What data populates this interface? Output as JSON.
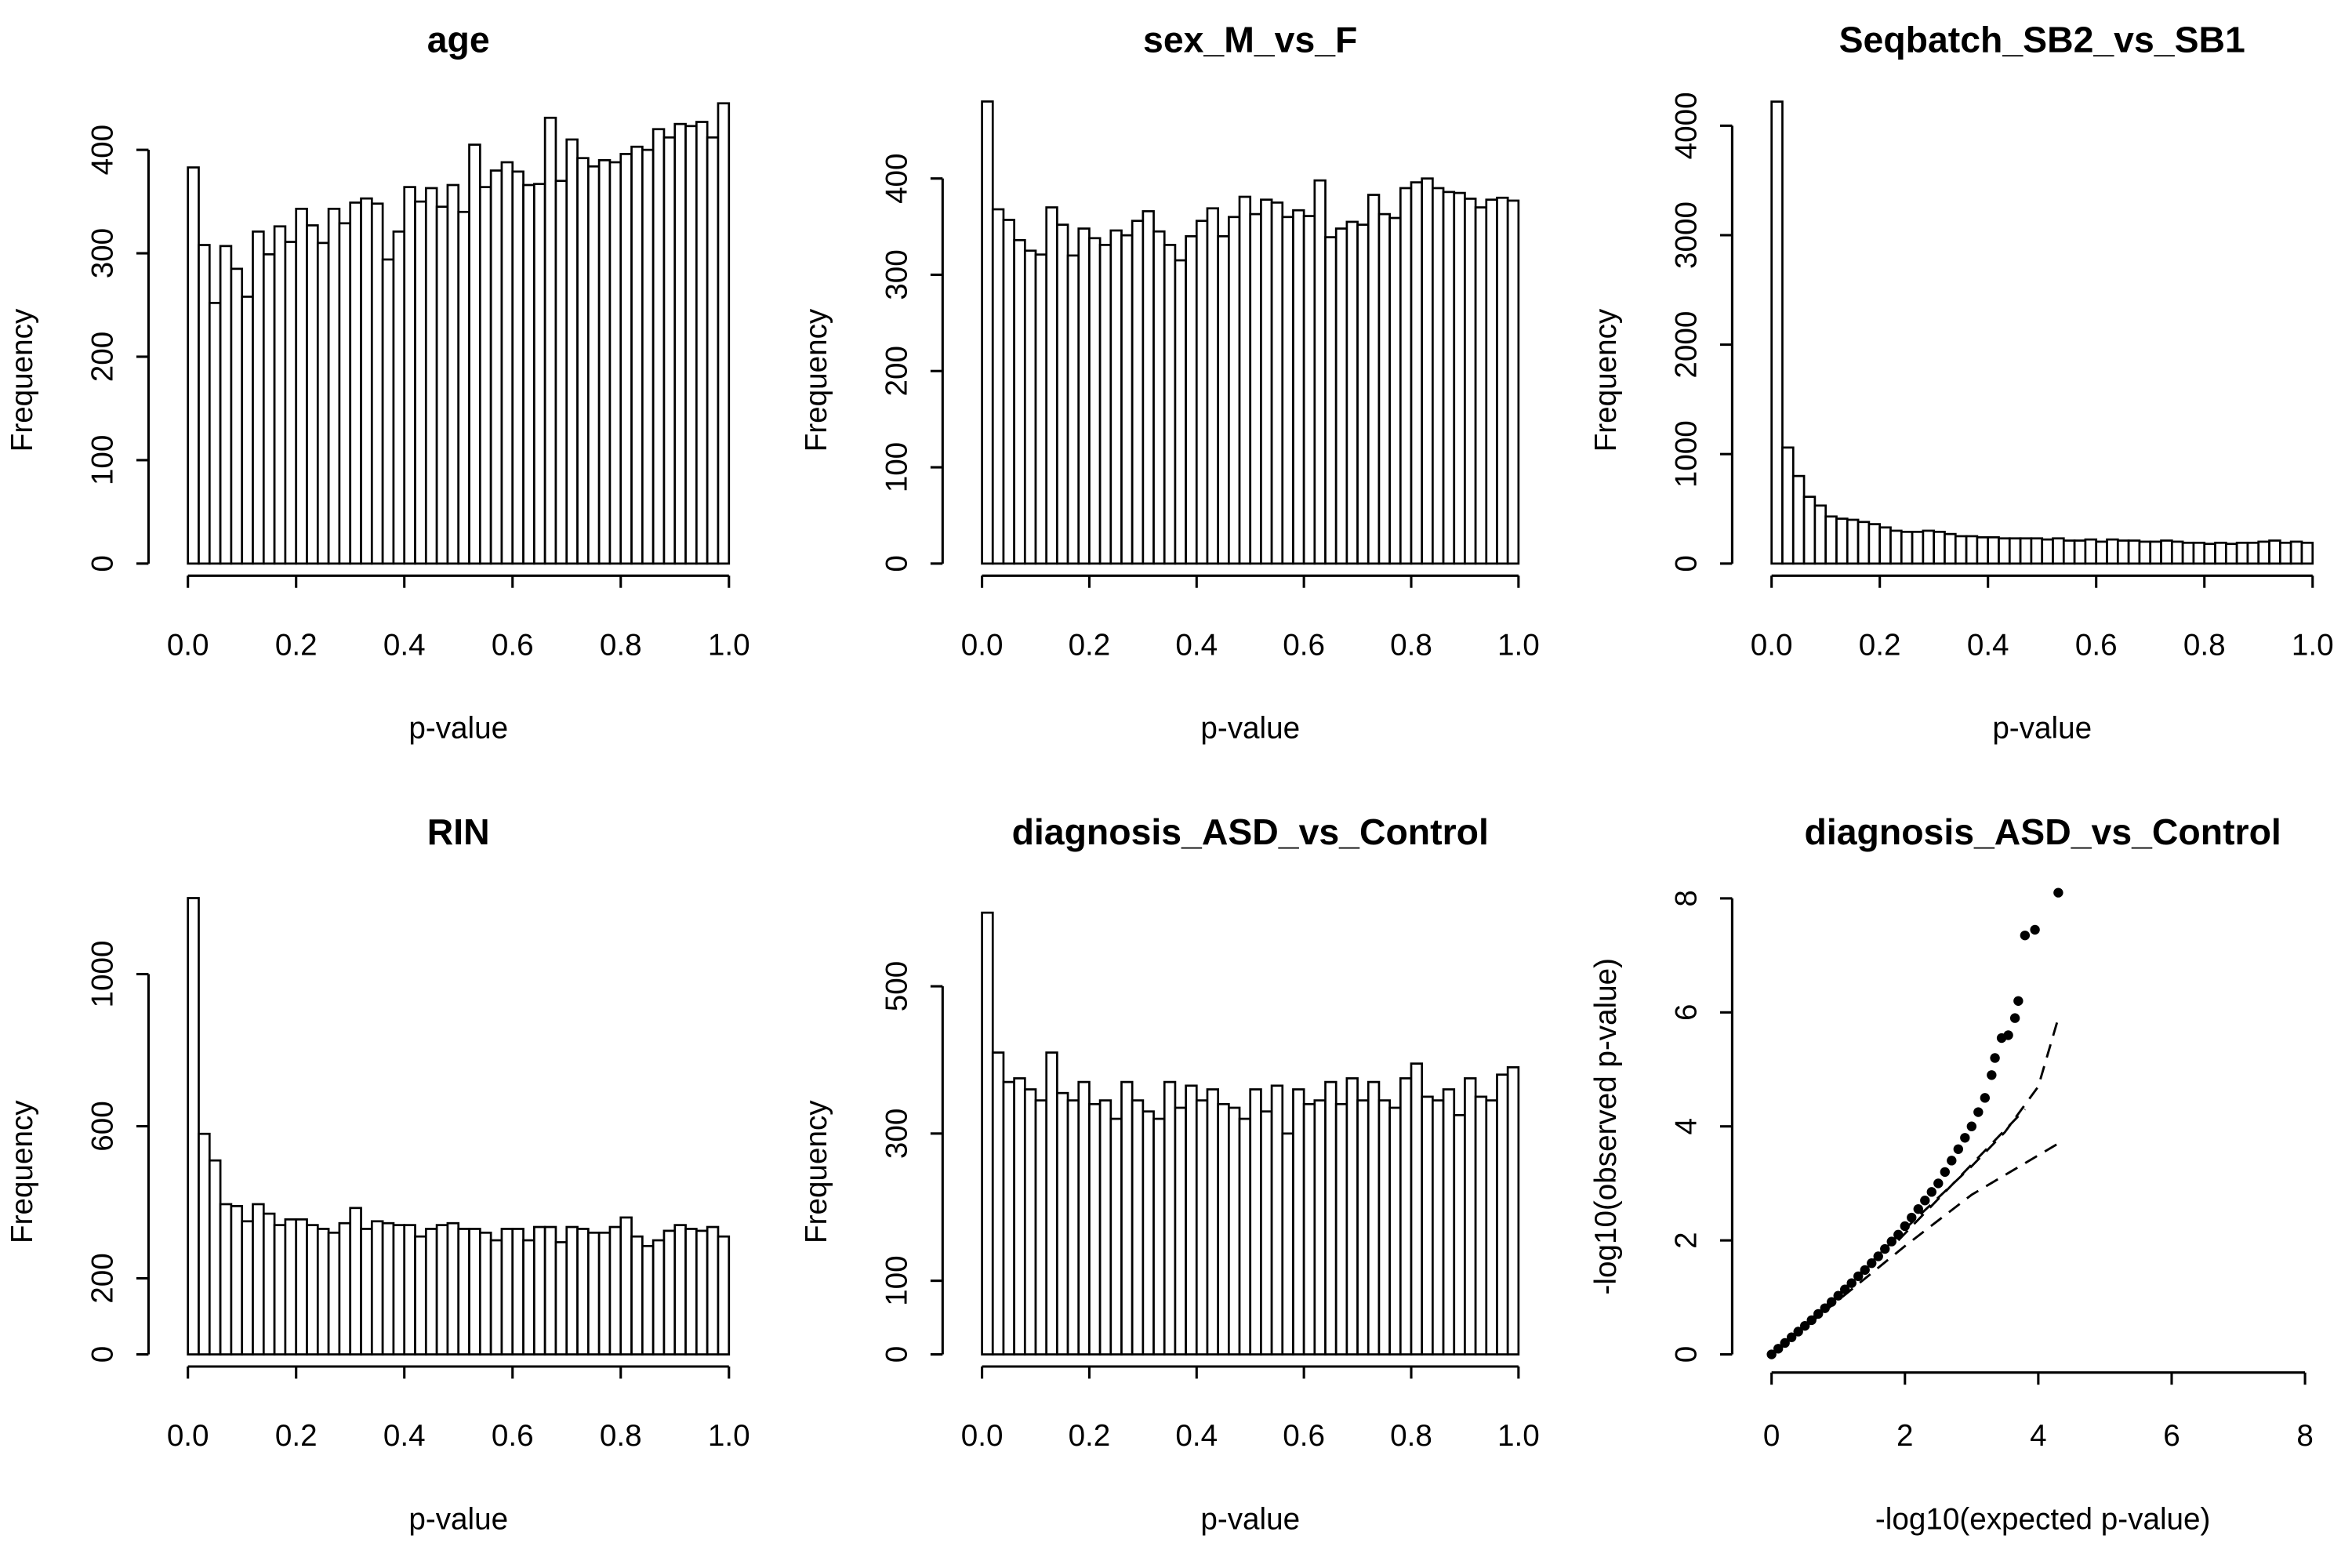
{
  "chart_data": [
    {
      "type": "histogram",
      "title": "age",
      "x_label": "p-value",
      "y_label": "Frequency",
      "color": "#ffffff",
      "edge_color": "#000000",
      "bins": [
        0,
        0.02,
        0.04,
        0.06,
        0.08,
        0.1,
        0.12,
        0.14,
        0.16,
        0.18,
        0.2,
        0.22,
        0.24,
        0.26,
        0.28,
        0.3,
        0.32,
        0.34,
        0.36,
        0.38,
        0.4,
        0.42,
        0.44,
        0.46,
        0.48,
        0.5,
        0.52,
        0.54,
        0.56,
        0.58,
        0.6,
        0.62,
        0.64,
        0.66,
        0.68,
        0.7,
        0.72,
        0.74,
        0.76,
        0.78,
        0.8,
        0.82,
        0.84,
        0.86,
        0.88,
        0.9,
        0.92,
        0.94,
        0.96,
        0.98,
        1
      ],
      "values": [
        383,
        308,
        252,
        307,
        285,
        258,
        321,
        299,
        326,
        311,
        343,
        327,
        310,
        343,
        329,
        349,
        353,
        348,
        294,
        321,
        364,
        350,
        363,
        345,
        366,
        340,
        405,
        364,
        380,
        388,
        379,
        366,
        367,
        431,
        370,
        410,
        392,
        384,
        390,
        388,
        396,
        403,
        400,
        420,
        412,
        425,
        423,
        427,
        412,
        445
      ],
      "xlim": [
        0,
        1
      ],
      "xticks": [
        {
          "value": 0,
          "label": "0.0"
        },
        0.2,
        0.4,
        0.6,
        0.8,
        {
          "value": 1,
          "label": "1.0"
        }
      ],
      "ylim": [
        0,
        457
      ],
      "yticks": [
        0,
        100,
        200,
        300,
        400
      ]
    },
    {
      "type": "histogram",
      "title": "sex_M_vs_F",
      "x_label": "p-value",
      "y_label": "Frequency",
      "color": "#ffffff",
      "edge_color": "#000000",
      "bins": [
        0,
        0.02,
        0.04,
        0.06,
        0.08,
        0.1,
        0.12,
        0.14,
        0.16,
        0.18,
        0.2,
        0.22,
        0.24,
        0.26,
        0.28,
        0.3,
        0.32,
        0.34,
        0.36,
        0.38,
        0.4,
        0.42,
        0.44,
        0.46,
        0.48,
        0.5,
        0.52,
        0.54,
        0.56,
        0.58,
        0.6,
        0.62,
        0.64,
        0.66,
        0.68,
        0.7,
        0.72,
        0.74,
        0.76,
        0.78,
        0.8,
        0.82,
        0.84,
        0.86,
        0.88,
        0.9,
        0.92,
        0.94,
        0.96,
        0.98,
        1
      ],
      "values": [
        480,
        368,
        357,
        336,
        325,
        321,
        370,
        352,
        320,
        348,
        338,
        331,
        346,
        341,
        356,
        366,
        345,
        331,
        315,
        340,
        356,
        369,
        340,
        360,
        381,
        363,
        378,
        375,
        360,
        367,
        361,
        398,
        339,
        348,
        355,
        352,
        383,
        363,
        359,
        390,
        396,
        400,
        390,
        386,
        385,
        379,
        370,
        378,
        380,
        377
      ],
      "xlim": [
        0,
        1
      ],
      "xticks": [
        {
          "value": 0,
          "label": "0.0"
        },
        0.2,
        0.4,
        0.6,
        0.8,
        {
          "value": 1,
          "label": "1.0"
        }
      ],
      "ylim": [
        0,
        491
      ],
      "yticks": [
        0,
        100,
        200,
        300,
        400
      ]
    },
    {
      "type": "histogram",
      "title": "Seqbatch_SB2_vs_SB1",
      "x_label": "p-value",
      "y_label": "Frequency",
      "color": "#ffffff",
      "edge_color": "#000000",
      "bins": [
        0,
        0.02,
        0.04,
        0.06,
        0.08,
        0.1,
        0.12,
        0.14,
        0.16,
        0.18,
        0.2,
        0.22,
        0.24,
        0.26,
        0.28,
        0.3,
        0.32,
        0.34,
        0.36,
        0.38,
        0.4,
        0.42,
        0.44,
        0.46,
        0.48,
        0.5,
        0.52,
        0.54,
        0.56,
        0.58,
        0.6,
        0.62,
        0.64,
        0.66,
        0.68,
        0.7,
        0.72,
        0.74,
        0.76,
        0.78,
        0.8,
        0.82,
        0.84,
        0.86,
        0.88,
        0.9,
        0.92,
        0.94,
        0.96,
        0.98,
        1
      ],
      "values": [
        4220,
        1060,
        800,
        610,
        530,
        430,
        410,
        400,
        380,
        360,
        330,
        300,
        290,
        290,
        300,
        290,
        270,
        250,
        250,
        240,
        240,
        230,
        230,
        230,
        230,
        220,
        230,
        210,
        210,
        220,
        200,
        220,
        210,
        210,
        200,
        200,
        210,
        200,
        190,
        190,
        180,
        190,
        180,
        190,
        190,
        200,
        210,
        190,
        200,
        190
      ],
      "xlim": [
        0,
        1
      ],
      "xticks": [
        {
          "value": 0,
          "label": "0.0"
        },
        0.2,
        0.4,
        0.6,
        0.8,
        {
          "value": 1,
          "label": "1.0"
        }
      ],
      "ylim": [
        0,
        4318
      ],
      "yticks": [
        0,
        1000,
        2000,
        3000,
        4000
      ]
    },
    {
      "type": "histogram",
      "title": "RIN",
      "x_label": "p-value",
      "y_label": "Frequency",
      "color": "#ffffff",
      "edge_color": "#000000",
      "bins": [
        0,
        0.02,
        0.04,
        0.06,
        0.08,
        0.1,
        0.12,
        0.14,
        0.16,
        0.18,
        0.2,
        0.22,
        0.24,
        0.26,
        0.28,
        0.3,
        0.32,
        0.34,
        0.36,
        0.38,
        0.4,
        0.42,
        0.44,
        0.46,
        0.48,
        0.5,
        0.52,
        0.54,
        0.56,
        0.58,
        0.6,
        0.62,
        0.64,
        0.66,
        0.68,
        0.7,
        0.72,
        0.74,
        0.76,
        0.78,
        0.8,
        0.82,
        0.84,
        0.86,
        0.88,
        0.9,
        0.92,
        0.94,
        0.96,
        0.98,
        1
      ],
      "values": [
        1200,
        580,
        510,
        395,
        390,
        350,
        395,
        370,
        340,
        355,
        355,
        340,
        330,
        320,
        345,
        385,
        330,
        350,
        345,
        340,
        340,
        310,
        330,
        340,
        345,
        330,
        330,
        320,
        300,
        330,
        330,
        300,
        335,
        335,
        295,
        335,
        330,
        320,
        320,
        335,
        360,
        310,
        285,
        300,
        325,
        340,
        330,
        325,
        335,
        310
      ],
      "xlim": [
        0,
        1
      ],
      "xticks": [
        {
          "value": 0,
          "label": "0.0"
        },
        0.2,
        0.4,
        0.6,
        0.8,
        {
          "value": 1,
          "label": "1.0"
        }
      ],
      "ylim": [
        0,
        1239
      ],
      "yticks": [
        0,
        200,
        600,
        1000
      ]
    },
    {
      "type": "histogram",
      "title": "diagnosis_ASD_vs_Control",
      "x_label": "p-value",
      "y_label": "Frequency",
      "color": "#ffffff",
      "edge_color": "#000000",
      "bins": [
        0,
        0.02,
        0.04,
        0.06,
        0.08,
        0.1,
        0.12,
        0.14,
        0.16,
        0.18,
        0.2,
        0.22,
        0.24,
        0.26,
        0.28,
        0.3,
        0.32,
        0.34,
        0.36,
        0.38,
        0.4,
        0.42,
        0.44,
        0.46,
        0.48,
        0.5,
        0.52,
        0.54,
        0.56,
        0.58,
        0.6,
        0.62,
        0.64,
        0.66,
        0.68,
        0.7,
        0.72,
        0.74,
        0.76,
        0.78,
        0.8,
        0.82,
        0.84,
        0.86,
        0.88,
        0.9,
        0.92,
        0.94,
        0.96,
        0.98,
        1
      ],
      "values": [
        600,
        410,
        370,
        375,
        360,
        345,
        410,
        355,
        345,
        370,
        340,
        345,
        320,
        370,
        345,
        330,
        320,
        370,
        335,
        365,
        345,
        360,
        340,
        335,
        320,
        360,
        330,
        365,
        300,
        360,
        340,
        345,
        370,
        340,
        375,
        345,
        370,
        345,
        335,
        375,
        395,
        350,
        345,
        360,
        325,
        375,
        350,
        345,
        380,
        390
      ],
      "xlim": [
        0,
        1
      ],
      "xticks": [
        {
          "value": 0,
          "label": "0.0"
        },
        0.2,
        0.4,
        0.6,
        0.8,
        {
          "value": 1,
          "label": "1.0"
        }
      ],
      "ylim": [
        0,
        640
      ],
      "yticks": [
        0,
        100,
        300,
        500
      ]
    },
    {
      "type": "scatter",
      "title": "diagnosis_ASD_vs_Control",
      "x_label": "-log10(expected p-value)",
      "y_label": "-log10(observed p-value)",
      "color": "#000000",
      "x": [
        0,
        0.1,
        0.2,
        0.3,
        0.4,
        0.5,
        0.6,
        0.7,
        0.8,
        0.9,
        1.0,
        1.1,
        1.2,
        1.3,
        1.4,
        1.5,
        1.6,
        1.7,
        1.8,
        1.9,
        2.0,
        2.1,
        2.2,
        2.3,
        2.4,
        2.5,
        2.6,
        2.7,
        2.8,
        2.9,
        3.0,
        3.1,
        3.2,
        3.3,
        3.35,
        3.45,
        3.55,
        3.65,
        3.7,
        3.8,
        3.95,
        4.3
      ],
      "values": [
        0,
        0.1,
        0.2,
        0.3,
        0.4,
        0.5,
        0.6,
        0.71,
        0.81,
        0.92,
        1.03,
        1.14,
        1.25,
        1.37,
        1.48,
        1.6,
        1.72,
        1.85,
        1.98,
        2.1,
        2.25,
        2.4,
        2.55,
        2.7,
        2.85,
        3.0,
        3.2,
        3.4,
        3.6,
        3.8,
        4.0,
        4.25,
        4.5,
        4.9,
        5.2,
        5.55,
        5.6,
        5.9,
        6.2,
        7.35,
        7.45,
        8.1
      ],
      "lines": [
        {
          "style": "dashed",
          "x": [
            1.9,
            3.8
          ],
          "values": [
            2.0,
            4.3
          ]
        },
        {
          "style": "dashed",
          "x": [
            0,
            1,
            2,
            3,
            3.5,
            4,
            4.3
          ],
          "values": [
            0,
            1.05,
            2.2,
            3.3,
            3.9,
            4.7,
            5.9
          ]
        },
        {
          "style": "dashed",
          "x": [
            0,
            2,
            3,
            4.3
          ],
          "values": [
            0,
            1.9,
            2.8,
            3.7
          ]
        }
      ],
      "xlim": [
        0,
        8
      ],
      "xticks": [
        0,
        2,
        4,
        6,
        8
      ],
      "ylim": [
        0,
        8
      ],
      "yticks": [
        0,
        2,
        4,
        6,
        8
      ]
    }
  ]
}
